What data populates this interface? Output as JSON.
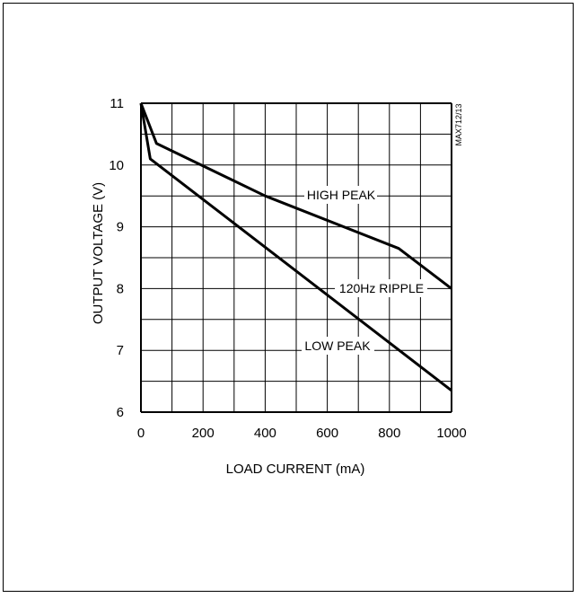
{
  "chart_data": {
    "type": "line",
    "title": "",
    "xlabel": "LOAD CURRENT (mA)",
    "ylabel": "OUTPUT VOLTAGE (V)",
    "xlim": [
      0,
      1000
    ],
    "ylim": [
      6,
      11
    ],
    "x_ticks": [
      "0",
      "200",
      "400",
      "600",
      "800",
      "1000"
    ],
    "y_ticks": [
      "6",
      "7",
      "8",
      "9",
      "10",
      "11"
    ],
    "grid": true,
    "series": [
      {
        "name": "HIGH PEAK",
        "x": [
          0,
          50,
          400,
          830,
          1000
        ],
        "y": [
          11,
          10.35,
          9.5,
          8.65,
          8.0
        ]
      },
      {
        "name": "LOW PEAK",
        "x": [
          0,
          30,
          1000
        ],
        "y": [
          11,
          10.1,
          6.35
        ]
      }
    ],
    "annotations": [
      {
        "text": "120Hz RIPPLE"
      },
      {
        "text": "MAX712/13"
      }
    ]
  }
}
